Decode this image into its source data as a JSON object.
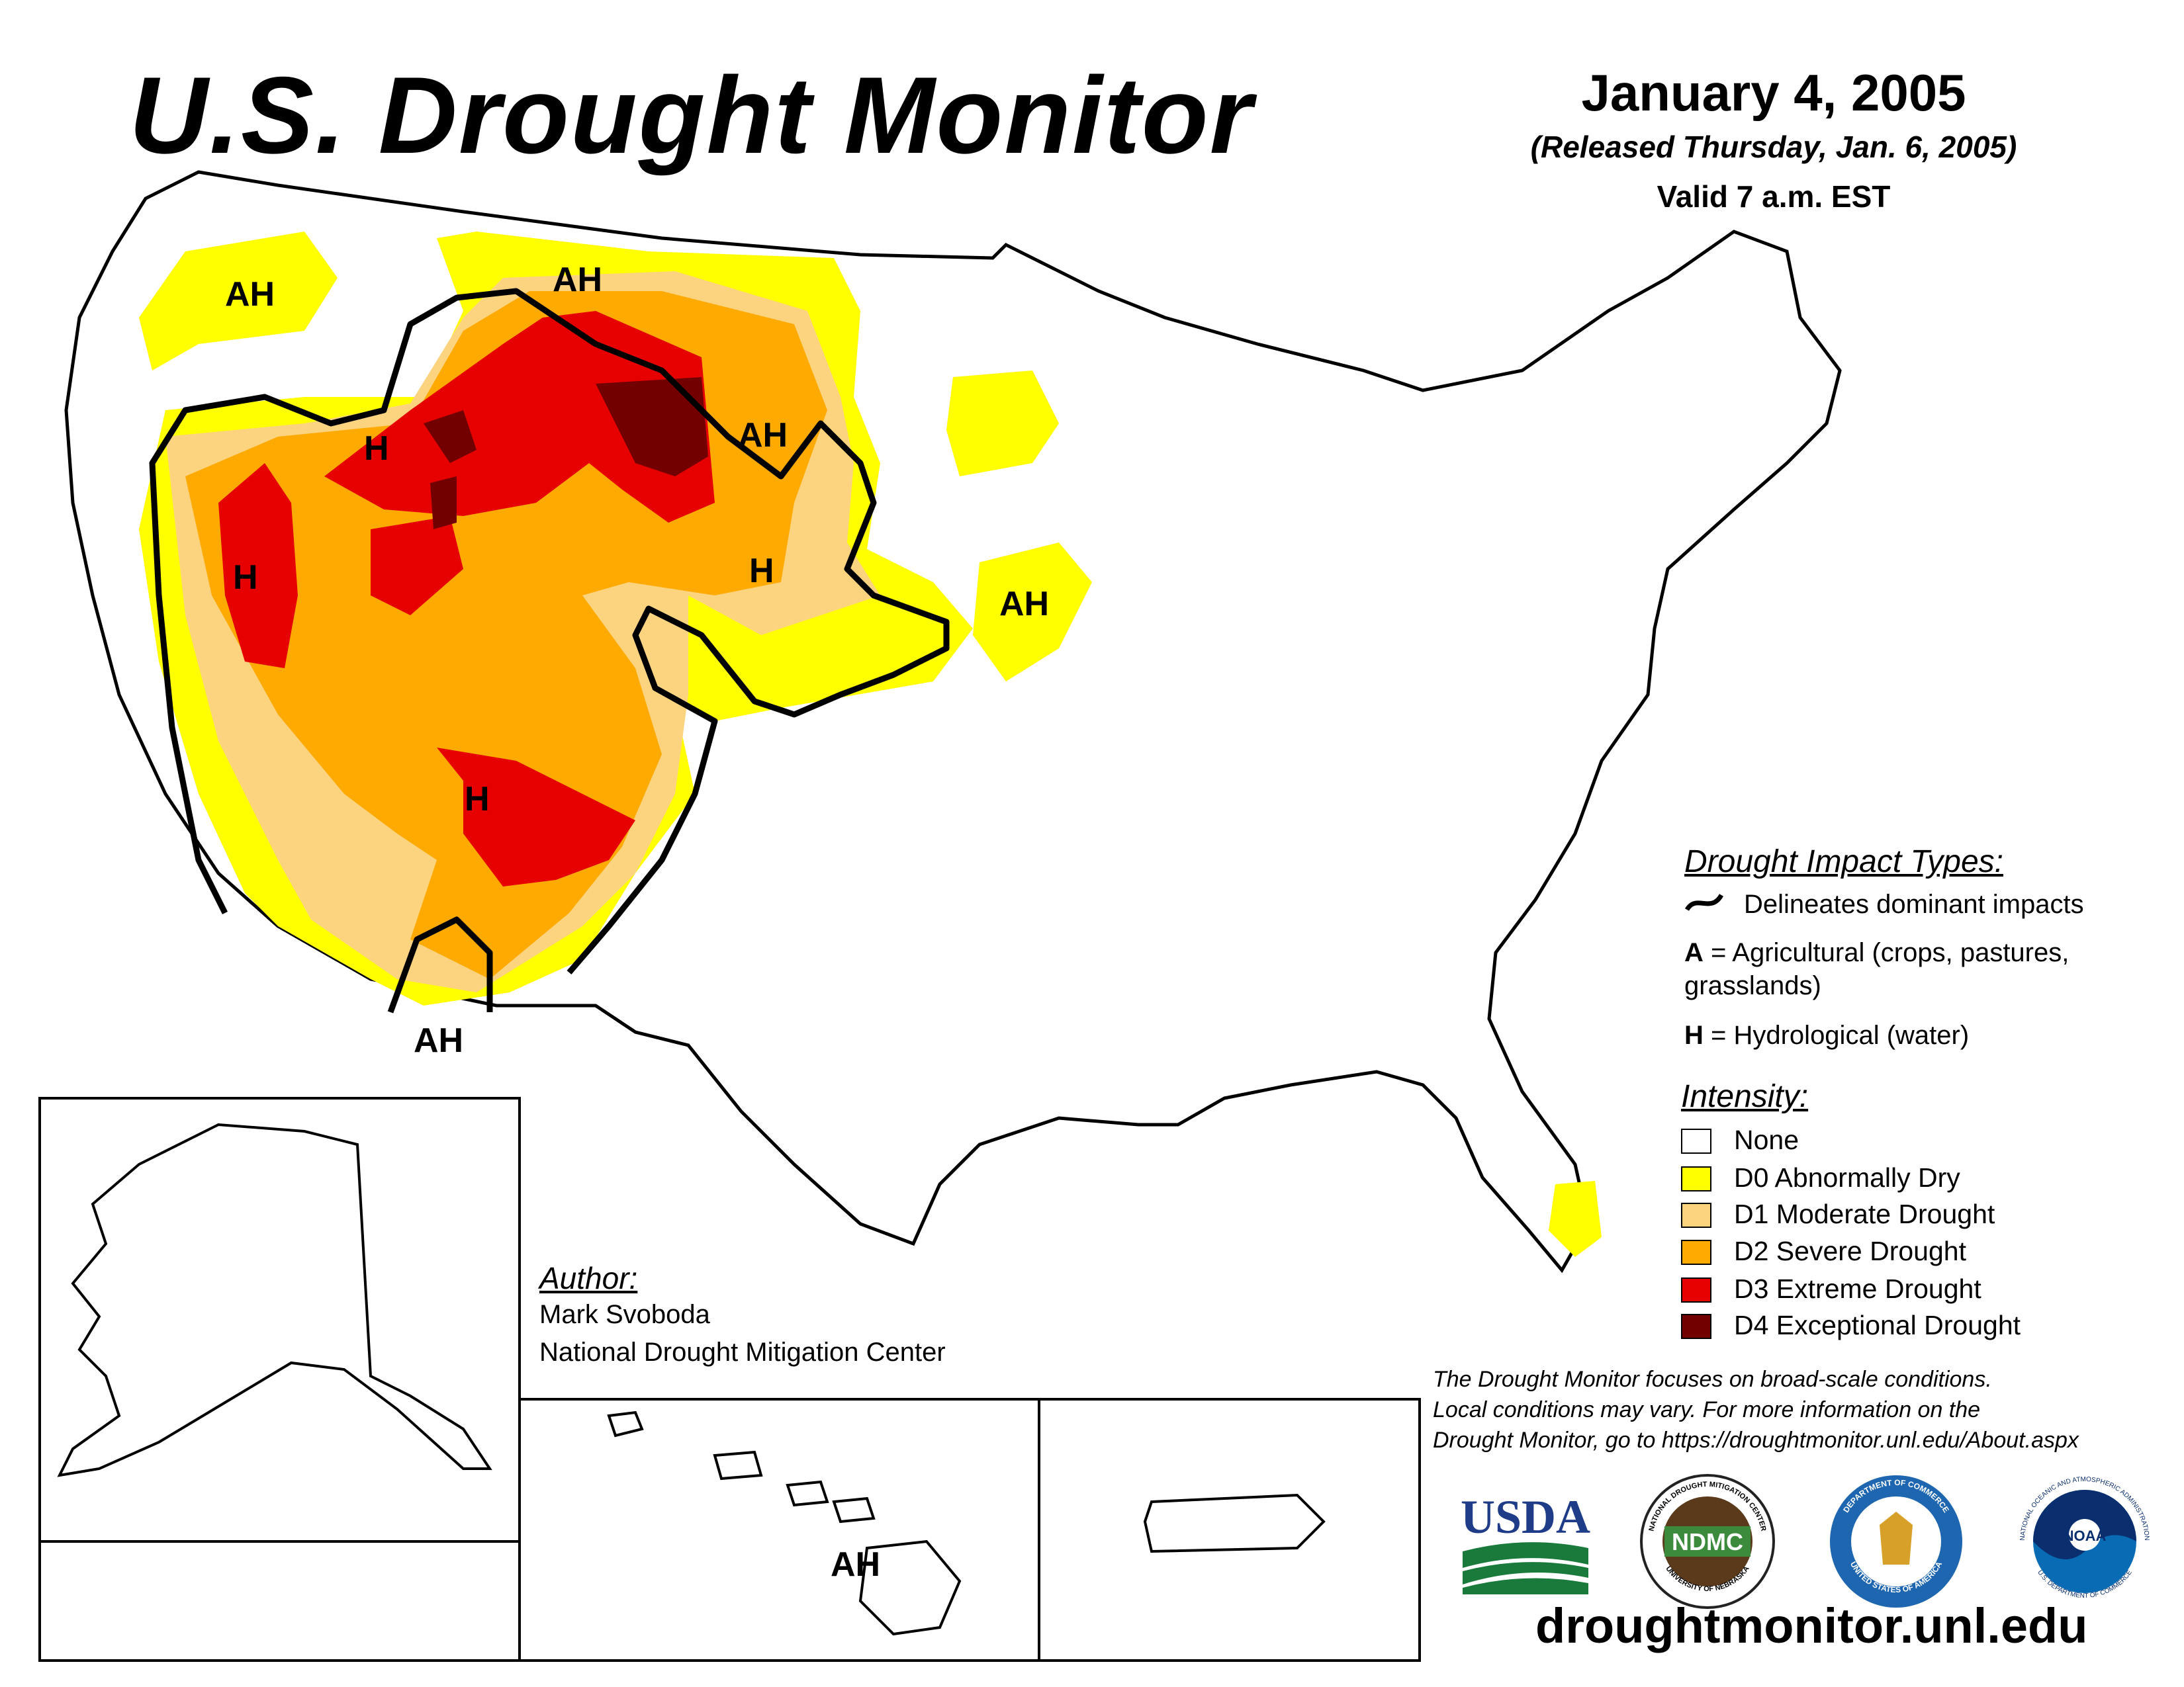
{
  "title": "U.S. Drought Monitor",
  "date": "January 4, 2005",
  "released": "(Released Thursday, Jan. 6, 2005)",
  "valid": "Valid 7 a.m. EST",
  "map_labels": {
    "ah_washington": "AH",
    "ah_montana": "AH",
    "ah_dakotas": "AH",
    "ah_iowa": "AH",
    "ah_arizona": "AH",
    "ah_hawaii": "AH",
    "h_idaho": "H",
    "h_nevada": "H",
    "h_colorado": "H",
    "h_arizona": "H"
  },
  "legend": {
    "impact_title": "Drought Impact Types:",
    "delineates": "Delineates dominant impacts",
    "a_key": "A",
    "a_desc": " = Agricultural (crops, pastures,",
    "a_desc2": "grasslands)",
    "h_key": "H",
    "h_desc": " = Hydrological (water)",
    "intensity_title": "Intensity:",
    "levels": [
      {
        "label": "None",
        "color": "#ffffff"
      },
      {
        "label": "D0 Abnormally Dry",
        "color": "#ffff00"
      },
      {
        "label": "D1 Moderate Drought",
        "color": "#fcd37f"
      },
      {
        "label": "D2 Severe Drought",
        "color": "#ffaa00"
      },
      {
        "label": "D3 Extreme Drought",
        "color": "#e60000"
      },
      {
        "label": "D4 Exceptional Drought",
        "color": "#730000"
      }
    ]
  },
  "author": {
    "heading": "Author:",
    "name": "Mark Svoboda",
    "org": "National Drought Mitigation Center"
  },
  "disclaimer": {
    "line1": "The Drought Monitor focuses on broad-scale conditions.",
    "line2": "Local conditions may vary. For more information on the",
    "line3": "Drought Monitor, go to https://droughtmonitor.unl.edu/About.aspx"
  },
  "logos": {
    "usda": "USDA",
    "ndmc": "NDMC",
    "ndmc_ring_top": "NATIONAL DROUGHT MITIGATION CENTER",
    "ndmc_ring_bottom": "UNIVERSITY OF NEBRASKA",
    "commerce_ring_top": "DEPARTMENT OF COMMERCE",
    "commerce_ring_bottom": "UNITED STATES OF AMERICA",
    "noaa": "NOAA",
    "noaa_ring_top": "NATIONAL OCEANIC AND ATMOSPHERIC ADMINISTRATION",
    "noaa_ring_bottom": "U.S. DEPARTMENT OF COMMERCE"
  },
  "url": "droughtmonitor.unl.edu"
}
